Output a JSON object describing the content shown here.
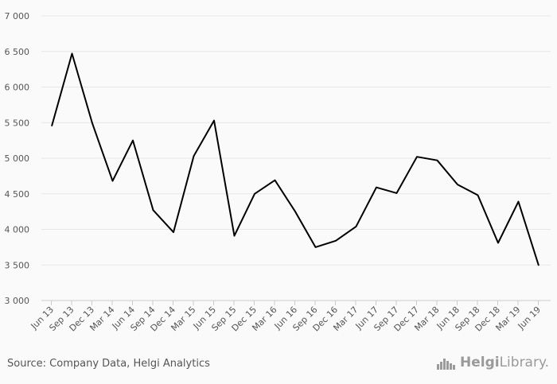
{
  "chart_data": {
    "type": "line",
    "categories": [
      "Jun 13",
      "Sep 13",
      "Dec 13",
      "Mar 14",
      "Jun 14",
      "Sep 14",
      "Dec 14",
      "Mar 15",
      "Jun 15",
      "Sep 15",
      "Dec 15",
      "Mar 16",
      "Jun 16",
      "Sep 16",
      "Dec 16",
      "Mar 17",
      "Jun 17",
      "Sep 17",
      "Dec 17",
      "Mar 18",
      "Jun 18",
      "Sep 18",
      "Dec 18",
      "Mar 19",
      "Jun 19"
    ],
    "series": [
      {
        "values": [
          5450,
          6470,
          5490,
          4680,
          5250,
          4270,
          3960,
          5030,
          5530,
          3910,
          4500,
          4690,
          4250,
          3750,
          3840,
          4040,
          4590,
          4510,
          5020,
          4970,
          4630,
          4480,
          3810,
          4390,
          3490
        ]
      }
    ],
    "yticks": [
      "3 000",
      "3 500",
      "4 000",
      "4 500",
      "5 000",
      "5 500",
      "6 000",
      "6 500",
      "7 000"
    ],
    "ylim": [
      3000,
      7000
    ],
    "grid": true,
    "line_color": "#000000",
    "grid_color": "#e6e6e6"
  },
  "footer": {
    "source": "Source: Company Data, Helgi Analytics",
    "brand_bold": "Helgi",
    "brand_light": "Library."
  }
}
